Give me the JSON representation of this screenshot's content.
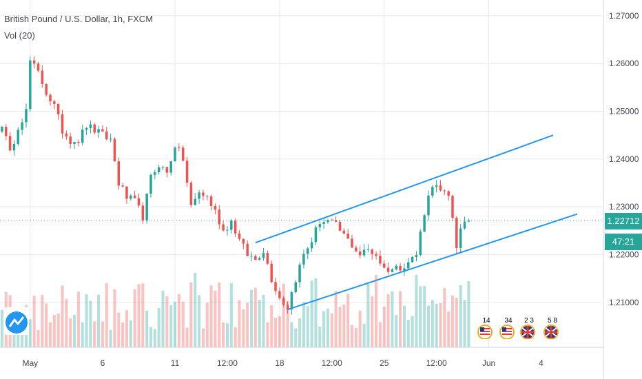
{
  "header": {
    "title": "British Pound / U.S. Dollar, 1h, FXCM",
    "indicator": "Vol (20)"
  },
  "price_axis": {
    "current_price": "1.22712",
    "countdown": "47:21",
    "tag_color": "#26a69a"
  },
  "events": [
    {
      "count": "14",
      "flag": "us-flag-icon"
    },
    {
      "count": "34",
      "flag": "us-flag-icon"
    },
    {
      "count": "2 3",
      "flag": "uk-flag-icon"
    },
    {
      "count": "5 8",
      "flag": "uk-flag-icon"
    }
  ],
  "colors": {
    "up": "#26a69a",
    "down": "#ef5350",
    "channel": "#2196f3",
    "grid": "#e6e9ef",
    "axis_text": "#434651"
  },
  "chart_data": {
    "type": "candlestick",
    "title": "British Pound / U.S. Dollar, 1h, FXCM",
    "y_ticks": [
      1.21,
      1.22,
      1.23,
      1.24,
      1.25,
      1.26,
      1.27
    ],
    "y_tick_labels": [
      "1.21000",
      "1.22000",
      "1.23000",
      "1.24000",
      "1.25000",
      "1.26000",
      "1.27000"
    ],
    "ylim": [
      1.2006,
      1.2733
    ],
    "x_tick_labels": [
      "May",
      "6",
      "11",
      "12:00",
      "18",
      "12:00",
      "25",
      "12:00",
      "Jun",
      "4"
    ],
    "x_tick_index": [
      7,
      25,
      43,
      56,
      69,
      82,
      95,
      108,
      121,
      134
    ],
    "bar_count": 150,
    "x_gridlines_at": [
      7,
      43,
      69,
      95,
      121
    ],
    "price_path_points": [
      [
        0,
        1.2475
      ],
      [
        2,
        1.241
      ],
      [
        4,
        1.247
      ],
      [
        6,
        1.25
      ],
      [
        7,
        1.2605
      ],
      [
        9,
        1.258
      ],
      [
        11,
        1.254
      ],
      [
        13,
        1.251
      ],
      [
        15,
        1.246
      ],
      [
        17,
        1.244
      ],
      [
        19,
        1.244
      ],
      [
        21,
        1.247
      ],
      [
        23,
        1.246
      ],
      [
        25,
        1.245
      ],
      [
        27,
        1.244
      ],
      [
        29,
        1.235
      ],
      [
        31,
        1.232
      ],
      [
        33,
        1.231
      ],
      [
        35,
        1.228
      ],
      [
        37,
        1.236
      ],
      [
        39,
        1.239
      ],
      [
        41,
        1.237
      ],
      [
        43,
        1.243
      ],
      [
        45,
        1.24
      ],
      [
        47,
        1.23
      ],
      [
        49,
        1.233
      ],
      [
        51,
        1.232
      ],
      [
        53,
        1.229
      ],
      [
        55,
        1.225
      ],
      [
        57,
        1.227
      ],
      [
        59,
        1.223
      ],
      [
        61,
        1.22
      ],
      [
        63,
        1.219
      ],
      [
        65,
        1.221
      ],
      [
        67,
        1.215
      ],
      [
        69,
        1.211
      ],
      [
        71,
        1.209
      ],
      [
        73,
        1.215
      ],
      [
        75,
        1.22
      ],
      [
        77,
        1.223
      ],
      [
        79,
        1.227
      ],
      [
        81,
        1.227
      ],
      [
        83,
        1.226
      ],
      [
        85,
        1.224
      ],
      [
        87,
        1.222
      ],
      [
        89,
        1.22
      ],
      [
        91,
        1.221
      ],
      [
        93,
        1.22
      ],
      [
        95,
        1.217
      ],
      [
        97,
        1.217
      ],
      [
        99,
        1.2175
      ],
      [
        101,
        1.2185
      ],
      [
        103,
        1.22
      ],
      [
        105,
        1.229
      ],
      [
        107,
        1.235
      ],
      [
        109,
        1.233
      ],
      [
        111,
        1.232
      ],
      [
        112,
        1.228
      ],
      [
        113,
        1.222
      ],
      [
        114,
        1.225
      ],
      [
        116,
        1.2271
      ]
    ],
    "last_price": 1.22712,
    "last_bar_index": 116,
    "price_line": 1.22712,
    "channel_upper": [
      [
        63,
        1.2225
      ],
      [
        137,
        1.245
      ]
    ],
    "channel_lower": [
      [
        71,
        1.2085
      ],
      [
        143,
        1.2285
      ]
    ],
    "volume_series": "Vol (20)",
    "grid": true
  }
}
